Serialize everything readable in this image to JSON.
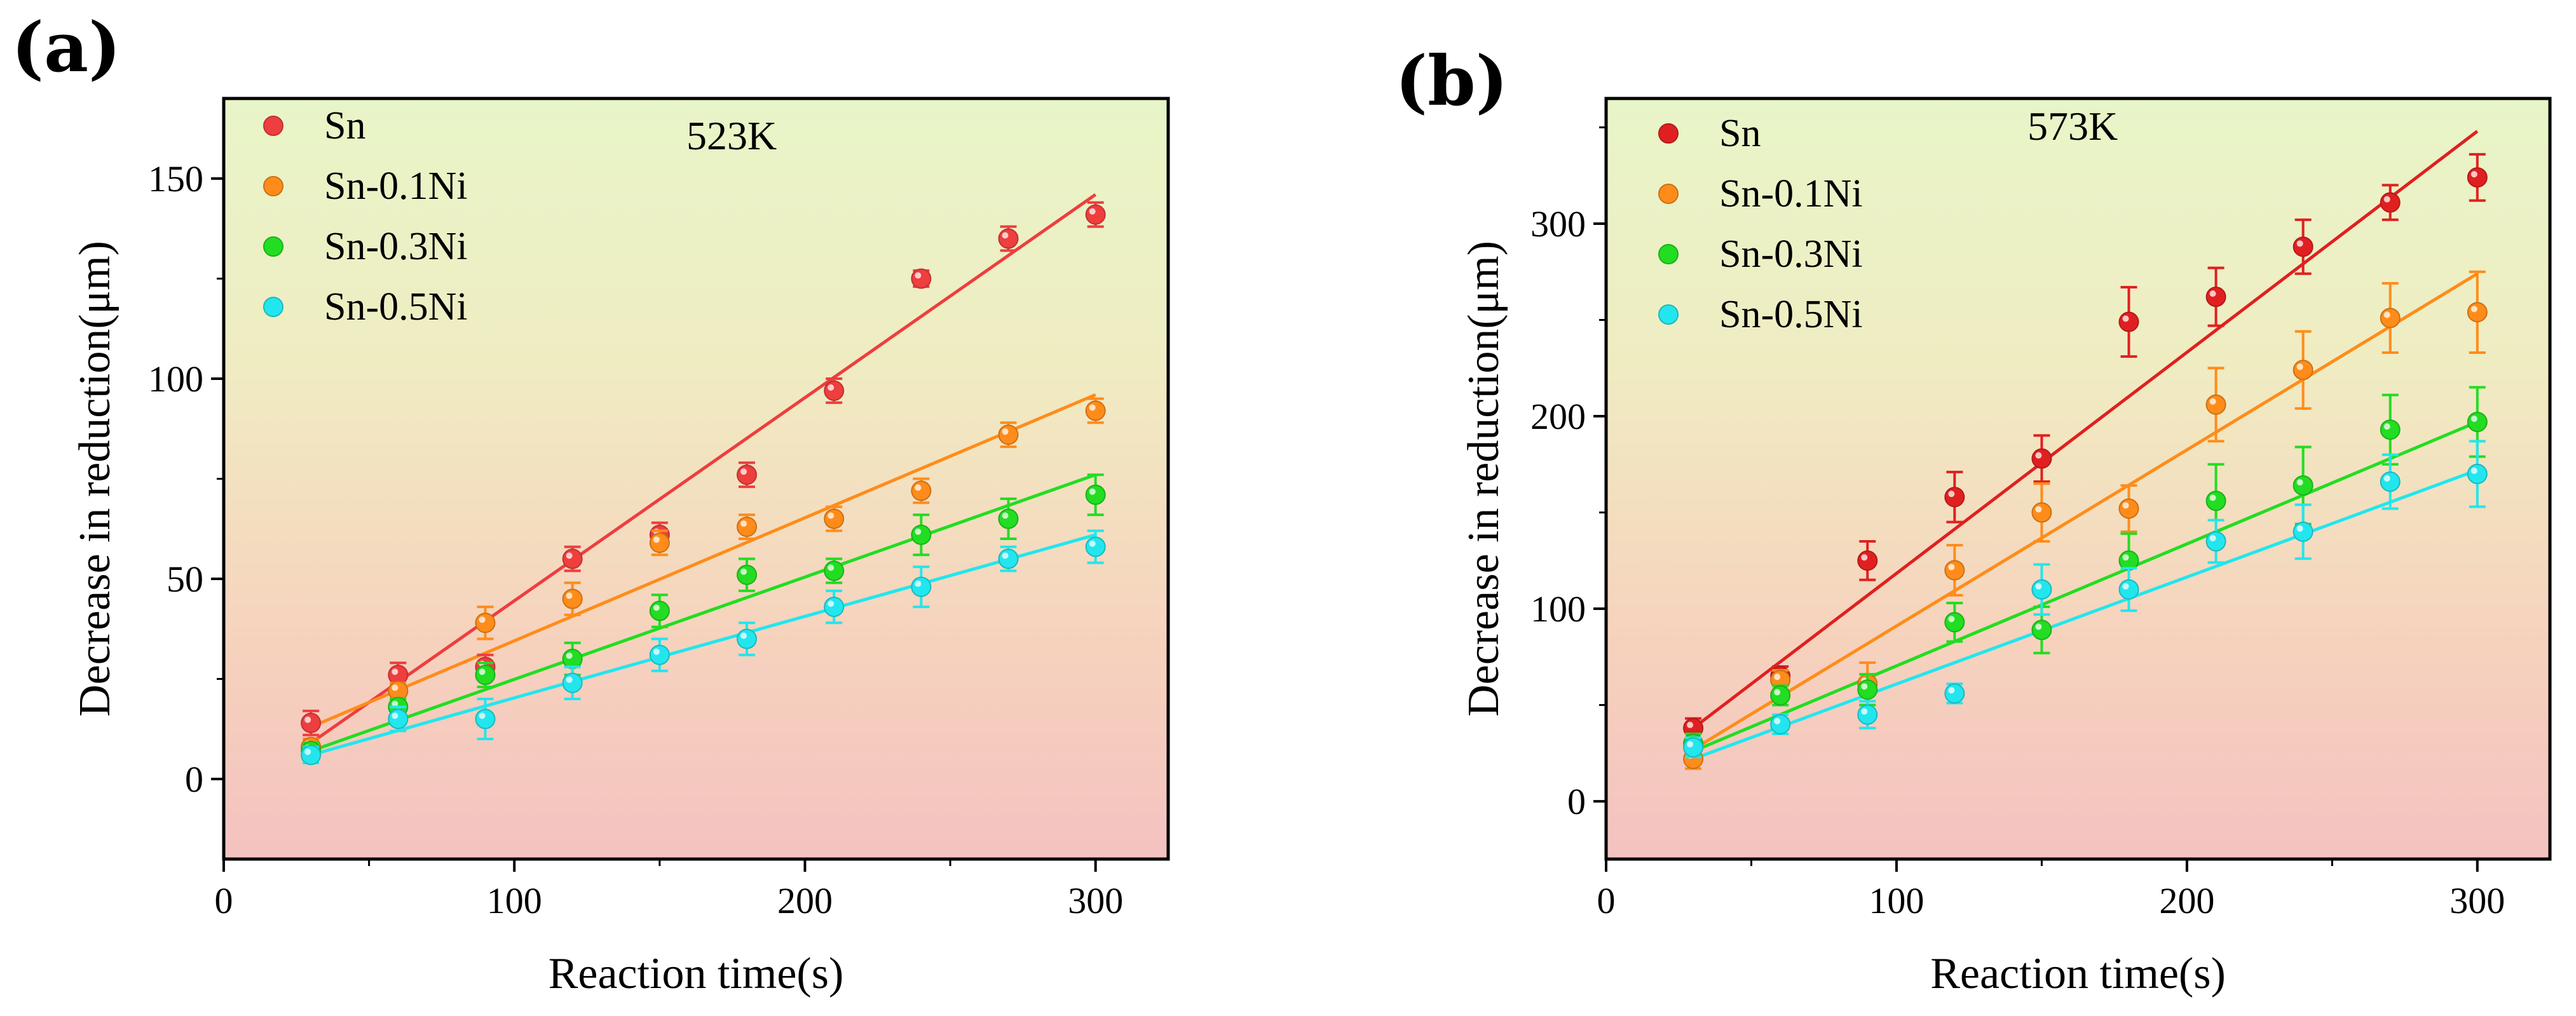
{
  "figure": {
    "panel_tags": [
      "(a)",
      "(b)"
    ]
  },
  "chart_data": [
    {
      "type": "scatter",
      "panel": "(a)",
      "annotation": "523K",
      "xlabel": "Reaction time(s)",
      "ylabel": "Decrease in reduction(μm)",
      "xlim": [
        0,
        325
      ],
      "ylim": [
        -20,
        170
      ],
      "xticks": [
        0,
        100,
        200,
        300
      ],
      "yticks": [
        0,
        50,
        100,
        150
      ],
      "x": [
        30,
        60,
        90,
        120,
        150,
        180,
        210,
        240,
        270,
        300
      ],
      "legend_position": "top-left",
      "series": [
        {
          "name": "Sn",
          "color": "#ee3e3e",
          "values": [
            14,
            26,
            28,
            55,
            61,
            76,
            97,
            125,
            135,
            141
          ],
          "errors": [
            3,
            3,
            3,
            3,
            3,
            3,
            3,
            2,
            3,
            3
          ],
          "fit": [
            9,
            146
          ]
        },
        {
          "name": "Sn-0.1Ni",
          "color": "#ff8c1a",
          "values": [
            8,
            22,
            39,
            45,
            59,
            63,
            65,
            72,
            86,
            92
          ],
          "errors": [
            2,
            2,
            4,
            4,
            3,
            3,
            3,
            3,
            3,
            3
          ],
          "fit": [
            13,
            96
          ]
        },
        {
          "name": "Sn-0.3Ni",
          "color": "#22dd22",
          "values": [
            7,
            18,
            26,
            30,
            42,
            51,
            52,
            61,
            65,
            71
          ],
          "errors": [
            2,
            2,
            3,
            4,
            4,
            4,
            3,
            5,
            5,
            5
          ],
          "fit": [
            7,
            76
          ]
        },
        {
          "name": "Sn-0.5Ni",
          "color": "#22e6ee",
          "values": [
            6,
            15,
            15,
            24,
            31,
            35,
            43,
            48,
            55,
            58
          ],
          "errors": [
            2,
            3,
            5,
            4,
            4,
            4,
            4,
            5,
            3,
            4
          ],
          "fit": [
            6,
            61
          ]
        }
      ]
    },
    {
      "type": "scatter",
      "panel": "(b)",
      "annotation": "573K",
      "xlabel": "Reaction time(s)",
      "ylabel": "Decrease in reduction(μm)",
      "xlim": [
        0,
        325
      ],
      "ylim": [
        -30,
        365
      ],
      "xticks": [
        0,
        100,
        200,
        300
      ],
      "yticks": [
        0,
        100,
        200,
        300
      ],
      "x": [
        30,
        60,
        90,
        120,
        150,
        180,
        210,
        240,
        270,
        300
      ],
      "legend_position": "top-left",
      "series": [
        {
          "name": "Sn",
          "color": "#e02020",
          "values": [
            38,
            65,
            125,
            158,
            178,
            249,
            262,
            288,
            311,
            324
          ],
          "errors": [
            5,
            5,
            10,
            13,
            12,
            18,
            15,
            14,
            9,
            12
          ],
          "fit": [
            38,
            348
          ]
        },
        {
          "name": "Sn-0.1Ni",
          "color": "#ff8c1a",
          "values": [
            22,
            63,
            61,
            120,
            150,
            152,
            206,
            224,
            251,
            254
          ],
          "errors": [
            5,
            5,
            11,
            13,
            15,
            12,
            19,
            20,
            18,
            21
          ],
          "fit": [
            27,
            274
          ]
        },
        {
          "name": "Sn-0.3Ni",
          "color": "#22dd22",
          "values": [
            30,
            55,
            58,
            93,
            89,
            125,
            156,
            164,
            193,
            197
          ],
          "errors": [
            5,
            5,
            8,
            10,
            12,
            14,
            19,
            20,
            18,
            18
          ],
          "fit": [
            26,
            197
          ]
        },
        {
          "name": "Sn-0.5Ni",
          "color": "#22e6ee",
          "values": [
            28,
            40,
            45,
            56,
            110,
            110,
            135,
            140,
            166,
            170
          ],
          "errors": [
            5,
            5,
            7,
            5,
            13,
            11,
            11,
            14,
            14,
            17
          ],
          "fit": [
            22,
            172
          ]
        }
      ]
    }
  ]
}
